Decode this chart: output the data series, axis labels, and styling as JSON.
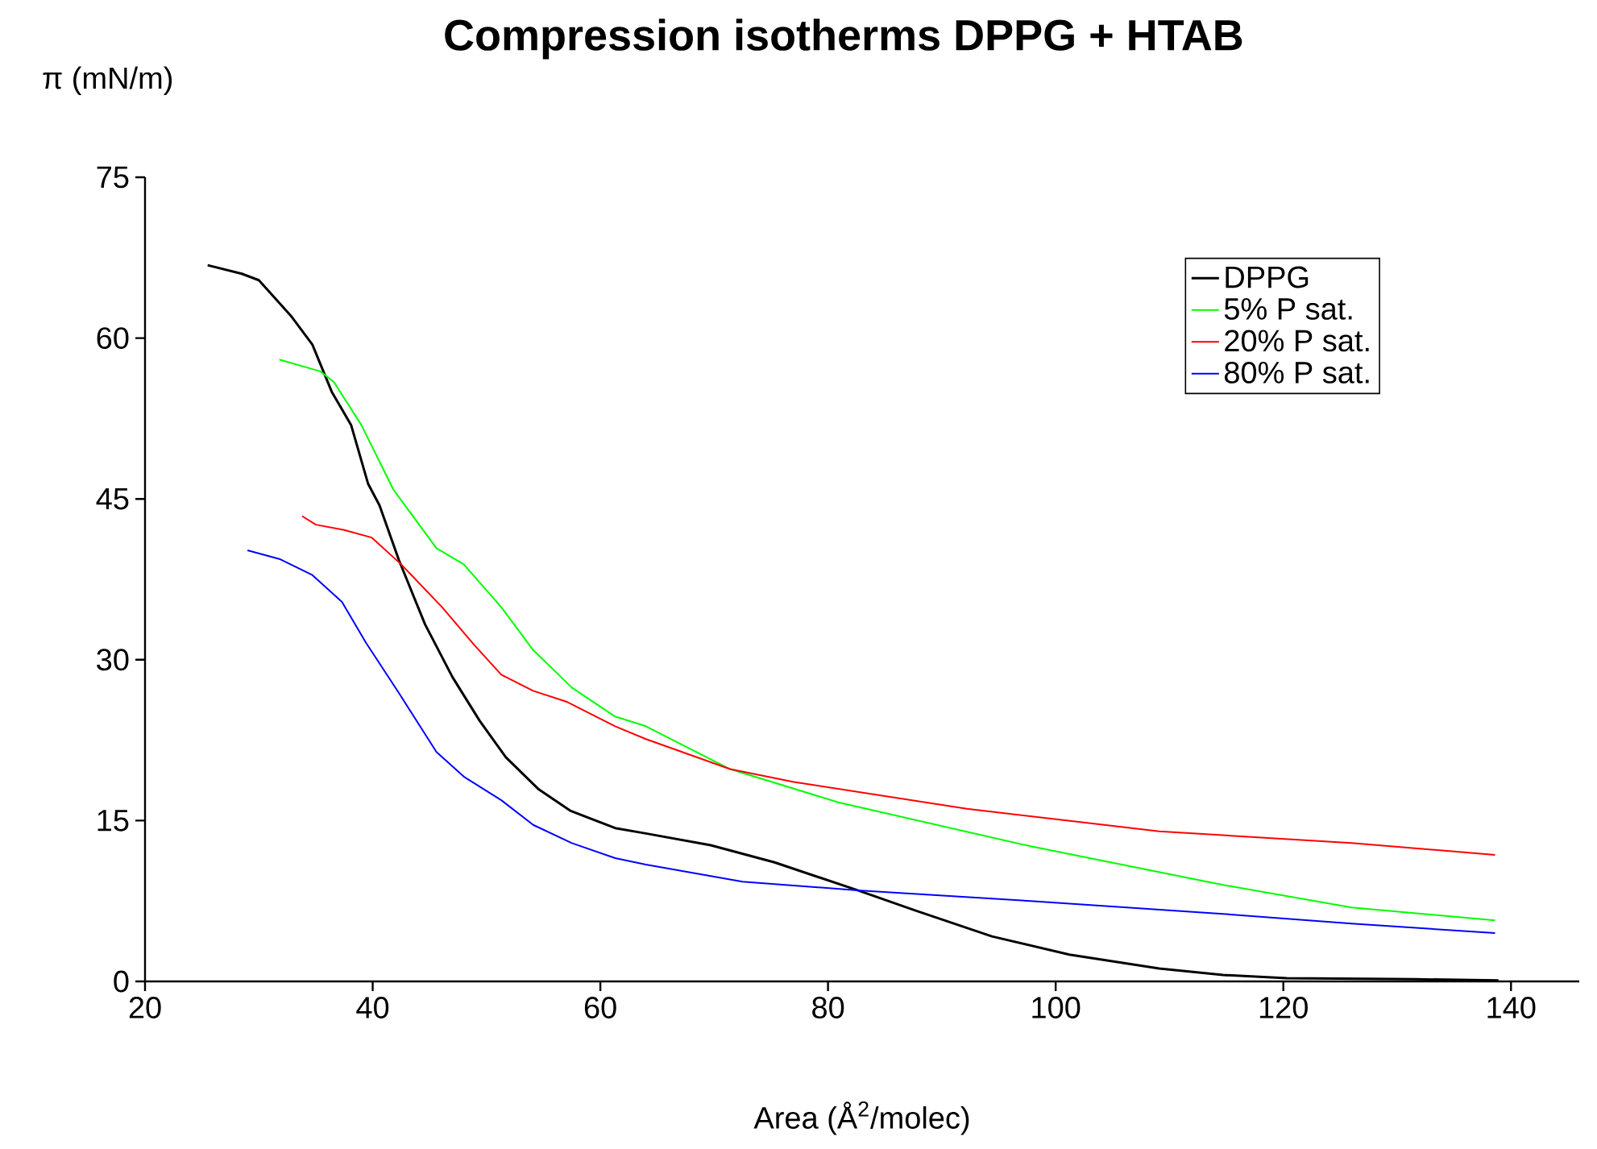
{
  "chart_data": {
    "type": "line",
    "title": "Compression isotherms DPPG + HTAB",
    "xlabel": "Area (Å$^{2}$/molec)",
    "ylabel": "π (mN/m)",
    "xlim": [
      20,
      146
    ],
    "ylim": [
      0,
      75
    ],
    "xticks": [
      20,
      40,
      60,
      80,
      100,
      120,
      140
    ],
    "yticks": [
      0,
      15,
      30,
      45,
      60,
      75
    ],
    "legend": "top right",
    "series": [
      {
        "name": "DPPG",
        "color": "#000000",
        "x": [
          25.5,
          28.5,
          30.0,
          32.8,
          34.7,
          36.4,
          38.1,
          39.6,
          40.6,
          42.3,
          44.6,
          47.0,
          49.4,
          51.7,
          54.6,
          57.4,
          61.3,
          64.0,
          69.7,
          75.3,
          82.6,
          87.7,
          94.4,
          101.2,
          109.1,
          114.7,
          120.3,
          131.6,
          138.9
        ],
        "values": [
          66.8,
          66.0,
          65.4,
          62.1,
          59.4,
          55.0,
          51.9,
          46.4,
          44.4,
          39.3,
          33.3,
          28.4,
          24.3,
          20.9,
          17.9,
          15.9,
          14.3,
          13.8,
          12.7,
          11.1,
          8.5,
          6.6,
          4.2,
          2.5,
          1.2,
          0.6,
          0.3,
          0.2,
          0.1
        ]
      },
      {
        "name": "5% P sat.",
        "color": "#00ff00",
        "x": [
          31.8,
          35.4,
          36.6,
          39.0,
          41.8,
          45.6,
          48.0,
          51.3,
          54.1,
          57.5,
          61.3,
          64.0,
          71.4,
          80.9,
          97.8,
          114.7,
          126.0,
          138.6
        ],
        "values": [
          58.0,
          56.9,
          55.9,
          51.9,
          45.9,
          40.4,
          38.9,
          34.9,
          30.9,
          27.4,
          24.7,
          23.8,
          19.8,
          16.7,
          12.6,
          9.0,
          6.9,
          5.7
        ]
      },
      {
        "name": "20% P sat.",
        "color": "#ff0000",
        "x": [
          33.8,
          35.0,
          37.5,
          39.9,
          42.5,
          46.1,
          48.9,
          51.3,
          54.1,
          57.0,
          61.3,
          64.0,
          71.4,
          77.0,
          92.2,
          109.1,
          126.0,
          138.6
        ],
        "values": [
          43.4,
          42.6,
          42.1,
          41.4,
          38.9,
          34.9,
          31.4,
          28.6,
          27.1,
          26.1,
          23.8,
          22.6,
          19.8,
          18.6,
          16.1,
          14.0,
          12.9,
          11.8
        ]
      },
      {
        "name": "80% P sat.",
        "color": "#0000ff",
        "x": [
          29.0,
          31.8,
          34.7,
          37.3,
          39.4,
          42.3,
          45.6,
          48.0,
          51.3,
          54.1,
          57.5,
          61.3,
          64.0,
          72.5,
          82.6,
          97.8,
          114.7,
          126.0,
          138.6
        ],
        "values": [
          40.2,
          39.4,
          37.9,
          35.4,
          31.6,
          26.9,
          21.4,
          19.1,
          16.9,
          14.6,
          12.9,
          11.5,
          10.9,
          9.3,
          8.5,
          7.5,
          6.3,
          5.4,
          4.5
        ]
      }
    ]
  }
}
